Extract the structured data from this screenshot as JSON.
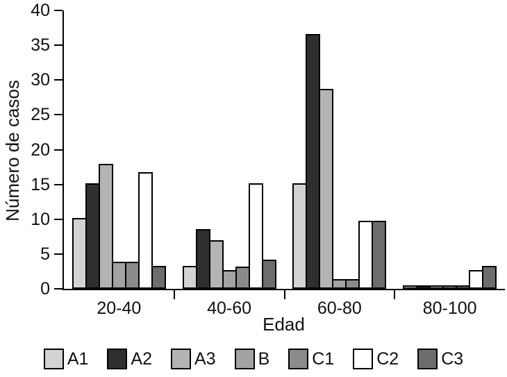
{
  "chart_data": {
    "type": "bar",
    "title": "",
    "xlabel": "Edad",
    "ylabel": "Número de casos",
    "ylim": [
      0,
      40
    ],
    "yticks": [
      0,
      5,
      10,
      15,
      20,
      25,
      30,
      35,
      40
    ],
    "grid": false,
    "legend_position": "bottom",
    "axis_color": "#000000",
    "bar_border_color": "#000000",
    "categories": [
      "20-40",
      "40-60",
      "60-80",
      "80-100"
    ],
    "series": [
      {
        "name": "A1",
        "color": "#d3d3d3",
        "values": [
          10.2,
          3.3,
          15.2,
          0.5
        ]
      },
      {
        "name": "A2",
        "color": "#2f2f2f",
        "values": [
          15.2,
          8.6,
          36.6,
          0.5
        ]
      },
      {
        "name": "A3",
        "color": "#b4b4b4",
        "values": [
          18.0,
          7.0,
          28.7,
          0.5
        ]
      },
      {
        "name": "B",
        "color": "#a3a3a3",
        "values": [
          3.9,
          2.7,
          1.4,
          0.5
        ]
      },
      {
        "name": "C1",
        "color": "#8b8b8b",
        "values": [
          3.9,
          3.2,
          1.4,
          0.5
        ]
      },
      {
        "name": "C2",
        "color": "#ffffff",
        "values": [
          16.8,
          15.2,
          9.8,
          2.7
        ]
      },
      {
        "name": "C3",
        "color": "#6d6d6d",
        "values": [
          3.3,
          4.2,
          9.8,
          3.3
        ]
      }
    ]
  }
}
